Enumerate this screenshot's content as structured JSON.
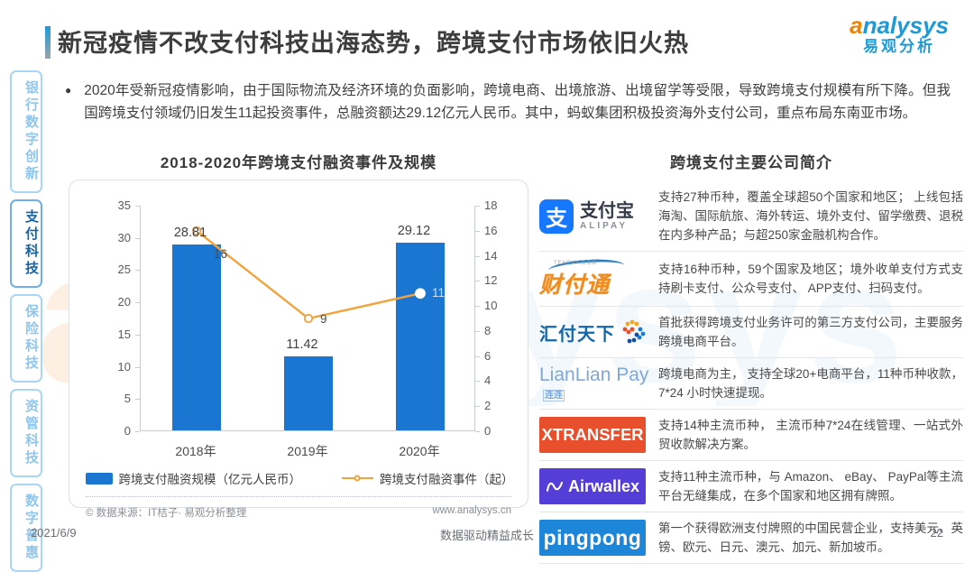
{
  "header": {
    "title": "新冠疫情不改支付科技出海态势，跨境支付市场依旧火热",
    "logo": {
      "brand_a": "a",
      "brand_rest": "nalysys",
      "brand_cn": "易观分析"
    }
  },
  "sidebar": {
    "items": [
      {
        "label": "银行数字创新",
        "active": false
      },
      {
        "label": "支付科技",
        "active": true
      },
      {
        "label": "保险科技",
        "active": false
      },
      {
        "label": "资管科技",
        "active": false
      },
      {
        "label": "数字普惠",
        "active": false
      }
    ]
  },
  "intro_bullet": "2020年受新冠疫情影响，由于国际物流及经济环境的负面影响，跨境电商、出境旅游、出境留学等受限，导致跨境支付规模有所下降。但我国跨境支付领域仍旧发生11起投资事件，总融资额达29.12亿元人民币。其中，蚂蚁集团积极投资海外支付公司，重点布局东南亚市场。",
  "chart_data": {
    "type": "bar+line",
    "title": "2018-2020年跨境支付融资事件及规模",
    "categories": [
      "2018年",
      "2019年",
      "2020年"
    ],
    "series": [
      {
        "name": "跨境支付融资规模（亿元人民币）",
        "type": "bar",
        "axis": "left",
        "values": [
          28.81,
          11.42,
          29.12
        ],
        "color": "#1b76d2"
      },
      {
        "name": "跨境支付融资事件（起）",
        "type": "line",
        "axis": "right",
        "values": [
          16,
          9,
          11
        ],
        "color": "#f2a33c"
      }
    ],
    "left_axis": {
      "min": 0,
      "max": 35,
      "step": 5
    },
    "right_axis": {
      "min": 0,
      "max": 18,
      "step": 2
    },
    "grid": false,
    "legend_position": "bottom",
    "source_left": "© 数据来源：IT桔子· 易观分析整理",
    "source_right": "www.analysys.cn"
  },
  "companies": {
    "title": "跨境支付主要公司简介",
    "logo_text": {
      "alipay_icon": "支",
      "alipay_cn": "支付宝",
      "alipay_en": "ALIPAY",
      "tenpay_cn": "财付通",
      "tenpay_site": "TENPAY.COM",
      "huifu_cn": "汇付天下",
      "lianlian_en": "LianLian Pay",
      "lianlian_cn": "连连",
      "xtransfer_en": "XTRANSFER",
      "airwallex_en": "Airwallex",
      "pingpong_en": "pingpong"
    },
    "rows": [
      {
        "logo": "alipay",
        "desc": "支持27种币种，覆盖全球超50个国家和地区； 上线包括海淘、国际航旅、海外转运、境外支付、留学缴费、退税在内多种产品；与超250家金融机构合作。"
      },
      {
        "logo": "tenpay",
        "desc": "支持16种币种，59个国家及地区；境外收单支付方式支持刷卡支付、公众号支付、 APP支付、扫码支付。"
      },
      {
        "logo": "huifu",
        "desc": "首批获得跨境支付业务许可的第三方支付公司，主要服务跨境电商平台。"
      },
      {
        "logo": "lianlian",
        "desc": "跨境电商为主， 支持全球20+电商平台，11种币种收款，7*24 小时快速提现。"
      },
      {
        "logo": "xtransfer",
        "desc": "支持14种主流币种， 主流币种7*24在线管理、一站式外贸收款解决方案。"
      },
      {
        "logo": "airwallex",
        "desc": "支持11种主流币种，与 Amazon、 eBay、 PayPal等主流平台无缝集成，在多个国家和地区拥有牌照。"
      },
      {
        "logo": "pingpong",
        "desc": "第一个获得欧洲支付牌照的中国民营企业，支持美元、英镑、欧元、日元、澳元、加元、新加坡币。"
      }
    ]
  },
  "watermark": {
    "en": "analysys",
    "a": "a"
  },
  "footer": {
    "date": "2021/6/9",
    "slogan": "数据驱动精益成长",
    "page": "22"
  }
}
